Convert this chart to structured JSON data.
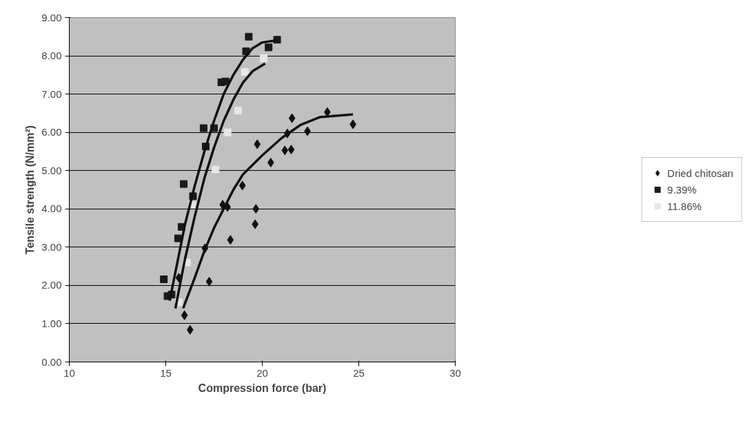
{
  "chart_data": {
    "type": "scatter",
    "xlabel": "Compression force (bar)",
    "ylabel": "Tensile strength (N/mm²)",
    "xlim": [
      10,
      30
    ],
    "ylim": [
      0,
      9
    ],
    "xticks": [
      10,
      15,
      20,
      25,
      30
    ],
    "yticks": [
      {
        "value": 0,
        "label": "0.00"
      },
      {
        "value": 1,
        "label": "1.00"
      },
      {
        "value": 2,
        "label": "2.00"
      },
      {
        "value": 3,
        "label": "3.00"
      },
      {
        "value": 4,
        "label": "4.00"
      },
      {
        "value": 5,
        "label": "5.00"
      },
      {
        "value": 6,
        "label": "6.00"
      },
      {
        "value": 7,
        "label": "7.00"
      },
      {
        "value": 8,
        "label": "8.00"
      },
      {
        "value": 9,
        "label": "9.00"
      }
    ],
    "grid": "y",
    "legend": "right",
    "series": [
      {
        "name": "Dried chitosan",
        "marker": "diamond",
        "color": "#111111",
        "x": [
          15.68,
          15.97,
          16.26,
          17.03,
          17.25,
          17.95,
          18.2,
          18.35,
          18.97,
          19.63,
          19.67,
          19.74,
          20.44,
          21.17,
          21.3,
          21.5,
          21.54,
          22.34,
          23.37,
          24.7
        ],
        "values": [
          2.2,
          1.22,
          0.84,
          2.97,
          2.1,
          4.11,
          4.05,
          3.19,
          4.61,
          3.6,
          4.0,
          5.69,
          5.21,
          5.53,
          5.97,
          5.55,
          6.37,
          6.03,
          6.53,
          6.21
        ]
      },
      {
        "name": "9.39%",
        "marker": "square",
        "color": "#1a1a1a",
        "x": [
          14.9,
          15.09,
          15.3,
          15.64,
          15.82,
          15.93,
          16.41,
          16.96,
          17.07,
          17.5,
          17.88,
          18.1,
          19.16,
          19.3,
          20.33,
          20.77
        ],
        "values": [
          2.16,
          1.72,
          1.76,
          3.23,
          3.53,
          4.65,
          4.33,
          6.11,
          5.63,
          6.11,
          7.31,
          7.33,
          8.12,
          8.5,
          8.22,
          8.42
        ]
      },
      {
        "name": "11.86%",
        "marker": "square",
        "color": "#e6e6e6",
        "x": [
          15.68,
          16.1,
          16.37,
          17.58,
          18.2,
          18.75,
          19.1,
          20.07
        ],
        "values": [
          1.56,
          2.6,
          4.11,
          5.03,
          6.0,
          6.57,
          7.58,
          7.94
        ]
      },
      {
        "type": "line",
        "line_style": "solid",
        "color": "#111111",
        "x": [
          15.9,
          16.5,
          17.0,
          17.5,
          18.0,
          18.5,
          19.0,
          20.0,
          21.0,
          22.0,
          23.0,
          24.7
        ],
        "values": [
          1.4,
          2.2,
          2.9,
          3.5,
          4.0,
          4.5,
          4.9,
          5.4,
          5.85,
          6.2,
          6.4,
          6.47
        ]
      },
      {
        "type": "line",
        "line_style": "solid",
        "color": "#111111",
        "x": [
          15.2,
          15.6,
          16.0,
          16.5,
          17.0,
          17.5,
          18.0,
          18.5,
          19.0,
          19.5,
          20.0,
          20.7
        ],
        "values": [
          1.6,
          2.6,
          3.6,
          4.6,
          5.5,
          6.3,
          7.0,
          7.5,
          7.9,
          8.2,
          8.35,
          8.4
        ]
      },
      {
        "type": "line",
        "line_style": "solid",
        "color": "#111111",
        "x": [
          15.5,
          16.0,
          16.5,
          17.0,
          17.5,
          18.0,
          18.5,
          19.0,
          19.5,
          20.15
        ],
        "values": [
          1.4,
          2.7,
          3.8,
          4.8,
          5.6,
          6.3,
          6.85,
          7.3,
          7.6,
          7.8
        ]
      }
    ]
  }
}
